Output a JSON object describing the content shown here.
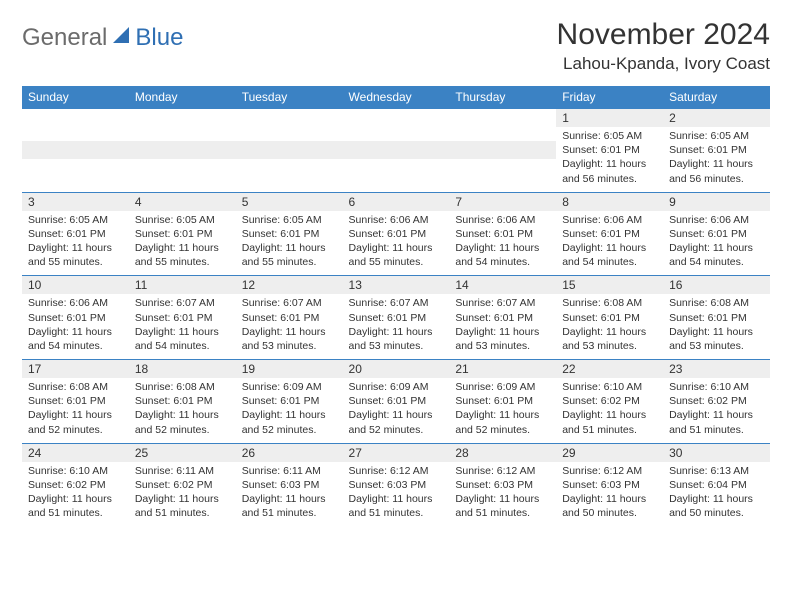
{
  "logo": {
    "general": "General",
    "blue": "Blue"
  },
  "title": "November 2024",
  "location": "Lahou-Kpanda, Ivory Coast",
  "colors": {
    "header_bg": "#3b82c4",
    "header_fg": "#ffffff",
    "daynum_bg": "#eeeeee",
    "border": "#3b82c4",
    "text": "#333333",
    "logo_gray": "#6b6b6b",
    "logo_blue": "#2f6fb3"
  },
  "day_headers": [
    "Sunday",
    "Monday",
    "Tuesday",
    "Wednesday",
    "Thursday",
    "Friday",
    "Saturday"
  ],
  "weeks": [
    [
      null,
      null,
      null,
      null,
      null,
      {
        "n": "1",
        "sr": "Sunrise: 6:05 AM",
        "ss": "Sunset: 6:01 PM",
        "dl": "Daylight: 11 hours and 56 minutes."
      },
      {
        "n": "2",
        "sr": "Sunrise: 6:05 AM",
        "ss": "Sunset: 6:01 PM",
        "dl": "Daylight: 11 hours and 56 minutes."
      }
    ],
    [
      {
        "n": "3",
        "sr": "Sunrise: 6:05 AM",
        "ss": "Sunset: 6:01 PM",
        "dl": "Daylight: 11 hours and 55 minutes."
      },
      {
        "n": "4",
        "sr": "Sunrise: 6:05 AM",
        "ss": "Sunset: 6:01 PM",
        "dl": "Daylight: 11 hours and 55 minutes."
      },
      {
        "n": "5",
        "sr": "Sunrise: 6:05 AM",
        "ss": "Sunset: 6:01 PM",
        "dl": "Daylight: 11 hours and 55 minutes."
      },
      {
        "n": "6",
        "sr": "Sunrise: 6:06 AM",
        "ss": "Sunset: 6:01 PM",
        "dl": "Daylight: 11 hours and 55 minutes."
      },
      {
        "n": "7",
        "sr": "Sunrise: 6:06 AM",
        "ss": "Sunset: 6:01 PM",
        "dl": "Daylight: 11 hours and 54 minutes."
      },
      {
        "n": "8",
        "sr": "Sunrise: 6:06 AM",
        "ss": "Sunset: 6:01 PM",
        "dl": "Daylight: 11 hours and 54 minutes."
      },
      {
        "n": "9",
        "sr": "Sunrise: 6:06 AM",
        "ss": "Sunset: 6:01 PM",
        "dl": "Daylight: 11 hours and 54 minutes."
      }
    ],
    [
      {
        "n": "10",
        "sr": "Sunrise: 6:06 AM",
        "ss": "Sunset: 6:01 PM",
        "dl": "Daylight: 11 hours and 54 minutes."
      },
      {
        "n": "11",
        "sr": "Sunrise: 6:07 AM",
        "ss": "Sunset: 6:01 PM",
        "dl": "Daylight: 11 hours and 54 minutes."
      },
      {
        "n": "12",
        "sr": "Sunrise: 6:07 AM",
        "ss": "Sunset: 6:01 PM",
        "dl": "Daylight: 11 hours and 53 minutes."
      },
      {
        "n": "13",
        "sr": "Sunrise: 6:07 AM",
        "ss": "Sunset: 6:01 PM",
        "dl": "Daylight: 11 hours and 53 minutes."
      },
      {
        "n": "14",
        "sr": "Sunrise: 6:07 AM",
        "ss": "Sunset: 6:01 PM",
        "dl": "Daylight: 11 hours and 53 minutes."
      },
      {
        "n": "15",
        "sr": "Sunrise: 6:08 AM",
        "ss": "Sunset: 6:01 PM",
        "dl": "Daylight: 11 hours and 53 minutes."
      },
      {
        "n": "16",
        "sr": "Sunrise: 6:08 AM",
        "ss": "Sunset: 6:01 PM",
        "dl": "Daylight: 11 hours and 53 minutes."
      }
    ],
    [
      {
        "n": "17",
        "sr": "Sunrise: 6:08 AM",
        "ss": "Sunset: 6:01 PM",
        "dl": "Daylight: 11 hours and 52 minutes."
      },
      {
        "n": "18",
        "sr": "Sunrise: 6:08 AM",
        "ss": "Sunset: 6:01 PM",
        "dl": "Daylight: 11 hours and 52 minutes."
      },
      {
        "n": "19",
        "sr": "Sunrise: 6:09 AM",
        "ss": "Sunset: 6:01 PM",
        "dl": "Daylight: 11 hours and 52 minutes."
      },
      {
        "n": "20",
        "sr": "Sunrise: 6:09 AM",
        "ss": "Sunset: 6:01 PM",
        "dl": "Daylight: 11 hours and 52 minutes."
      },
      {
        "n": "21",
        "sr": "Sunrise: 6:09 AM",
        "ss": "Sunset: 6:01 PM",
        "dl": "Daylight: 11 hours and 52 minutes."
      },
      {
        "n": "22",
        "sr": "Sunrise: 6:10 AM",
        "ss": "Sunset: 6:02 PM",
        "dl": "Daylight: 11 hours and 51 minutes."
      },
      {
        "n": "23",
        "sr": "Sunrise: 6:10 AM",
        "ss": "Sunset: 6:02 PM",
        "dl": "Daylight: 11 hours and 51 minutes."
      }
    ],
    [
      {
        "n": "24",
        "sr": "Sunrise: 6:10 AM",
        "ss": "Sunset: 6:02 PM",
        "dl": "Daylight: 11 hours and 51 minutes."
      },
      {
        "n": "25",
        "sr": "Sunrise: 6:11 AM",
        "ss": "Sunset: 6:02 PM",
        "dl": "Daylight: 11 hours and 51 minutes."
      },
      {
        "n": "26",
        "sr": "Sunrise: 6:11 AM",
        "ss": "Sunset: 6:03 PM",
        "dl": "Daylight: 11 hours and 51 minutes."
      },
      {
        "n": "27",
        "sr": "Sunrise: 6:12 AM",
        "ss": "Sunset: 6:03 PM",
        "dl": "Daylight: 11 hours and 51 minutes."
      },
      {
        "n": "28",
        "sr": "Sunrise: 6:12 AM",
        "ss": "Sunset: 6:03 PM",
        "dl": "Daylight: 11 hours and 51 minutes."
      },
      {
        "n": "29",
        "sr": "Sunrise: 6:12 AM",
        "ss": "Sunset: 6:03 PM",
        "dl": "Daylight: 11 hours and 50 minutes."
      },
      {
        "n": "30",
        "sr": "Sunrise: 6:13 AM",
        "ss": "Sunset: 6:04 PM",
        "dl": "Daylight: 11 hours and 50 minutes."
      }
    ]
  ]
}
